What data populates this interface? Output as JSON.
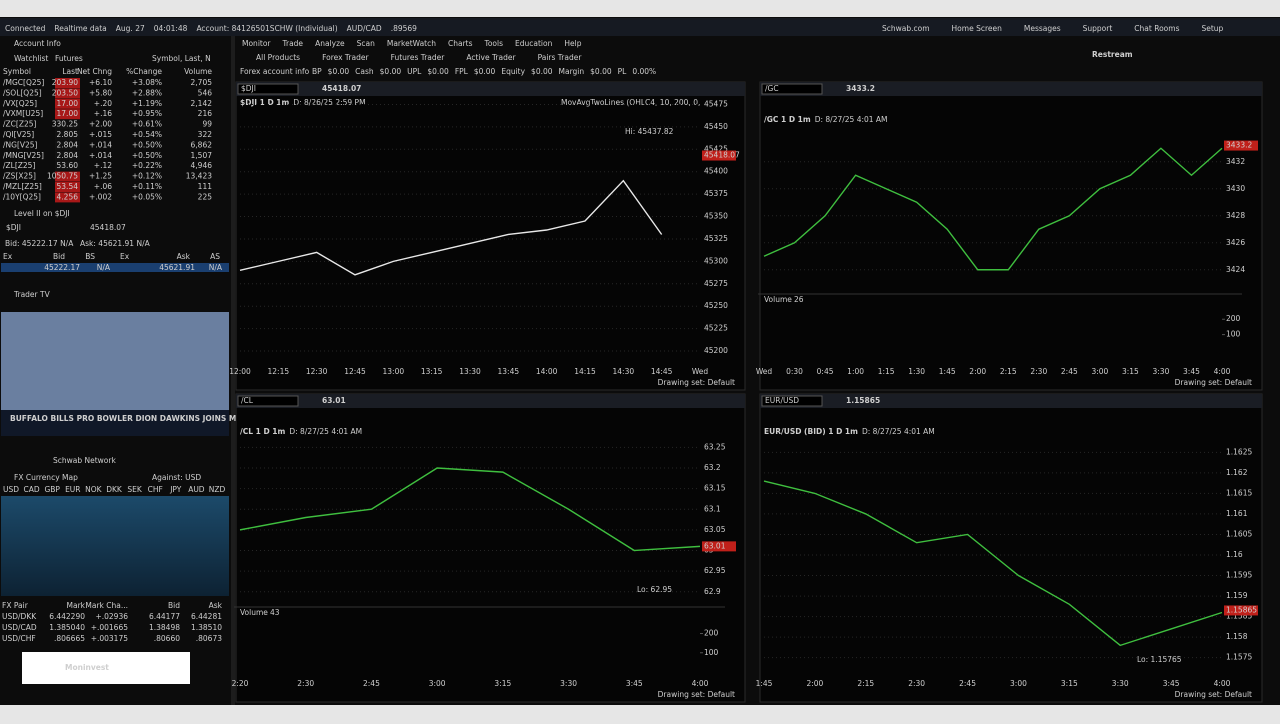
{
  "status": {
    "items": [
      "Connected",
      "Realtime data",
      "Aug. 27",
      "04:01:48",
      "Account: 84126501SCHW (Individual)",
      "AUD/CAD",
      ".89569"
    ],
    "links": [
      "Schwab.com",
      "Home Screen",
      "Messages",
      "Support",
      "Chat Rooms",
      "Setup"
    ]
  },
  "menu": [
    "Monitor",
    "Trade",
    "Analyze",
    "Scan",
    "MarketWatch",
    "Charts",
    "Tools",
    "Education",
    "Help"
  ],
  "subtabs": [
    "All Products",
    "Forex Trader",
    "Futures Trader",
    "Active Trader",
    "Pairs Trader"
  ],
  "account": {
    "title": "Forex account info",
    "fields": [
      "BP",
      "$0.00",
      "Cash",
      "$0.00",
      "UPL",
      "$0.00",
      "FPL",
      "$0.00",
      "Equity",
      "$0.00",
      "Margin",
      "$0.00",
      "PL",
      "0.00%"
    ]
  },
  "sidebar": {
    "account_info": "Account Info",
    "watchlist": {
      "title": "Watchlist",
      "name": "Futures",
      "search": "Symbol, Last, N",
      "columns": [
        "Symbol",
        "Last",
        "Net Chng",
        "%Change",
        "Volume"
      ],
      "rows": [
        [
          "/MGC[Q25]",
          "203.90",
          "+6.10",
          "+3.08%",
          "2,705"
        ],
        [
          "/SOL[Q25]",
          "203.50",
          "+5.80",
          "+2.88%",
          "546"
        ],
        [
          "/VX[Q25]",
          "17.00",
          "+.20",
          "+1.19%",
          "2,142"
        ],
        [
          "/VXM[U25]",
          "17.00",
          "+.16",
          "+0.95%",
          "216"
        ],
        [
          "/ZC[Z25]",
          "330.25",
          "+2.00",
          "+0.61%",
          "99"
        ],
        [
          "/QI[V25]",
          "2.805",
          "+.015",
          "+0.54%",
          "322"
        ],
        [
          "/NG[V25]",
          "2.804",
          "+.014",
          "+0.50%",
          "6,862"
        ],
        [
          "/MNG[V25]",
          "2.804",
          "+.014",
          "+0.50%",
          "1,507"
        ],
        [
          "/ZL[Z25]",
          "53.60",
          "+.12",
          "+0.22%",
          "4,946"
        ],
        [
          "/ZS[X25]",
          "1050.75",
          "+1.25",
          "+0.12%",
          "13,423"
        ],
        [
          "/MZL[Z25]",
          "53.54",
          "+.06",
          "+0.11%",
          "111"
        ],
        [
          "/10Y[Q25]",
          "4.256",
          "+.002",
          "+0.05%",
          "225"
        ]
      ]
    },
    "level2": {
      "title": "Level II on $DJI",
      "symbol": "$DJI",
      "price": "45418.07",
      "bid": "Bid: 45222.17 N/A",
      "ask": "Ask: 45621.91 N/A",
      "columns": [
        "Ex",
        "Bid",
        "BS",
        "Ex",
        "Ask",
        "AS"
      ],
      "row": [
        "45222.17",
        "N/A",
        "45621.91",
        "N/A"
      ]
    },
    "tv": {
      "title": "Trader TV",
      "caption": "BUFFALO BILLS PRO BOWLER DION DAWKINS JOINS MARKET OVERTIME",
      "channel": "Schwab Network"
    },
    "fx": {
      "title": "FX Currency Map",
      "against": "Against: USD",
      "currencies": [
        "USD",
        "CAD",
        "GBP",
        "EUR",
        "NOK",
        "DKK",
        "SEK",
        "CHF",
        "JPY",
        "AUD",
        "NZD"
      ],
      "columns": [
        "FX Pair",
        "Mark",
        "Mark Cha...",
        "Bid",
        "Ask"
      ],
      "rows": [
        [
          "USD/DKK",
          "6.442290",
          "+.02936",
          "6.44177",
          "6.44281"
        ],
        [
          "USD/CAD",
          "1.385040",
          "+.001665",
          "1.38498",
          "1.38510"
        ],
        [
          "USD/CHF",
          ".806665",
          "+.003175",
          ".80660",
          ".80673"
        ]
      ]
    }
  },
  "overlays": {
    "left": "Moninvest",
    "right": "Restream"
  },
  "charts": [
    {
      "type": "line",
      "symbol": "$DJI",
      "title": "$DJI 1 D 1m",
      "info": "D: 8/26/25 2:59 PM",
      "study": "MovAvgTwoLines (OHLC4, 10, 200, 0,",
      "price": 45418.07,
      "color": "#e8e8e8",
      "note": "Hi: 45437.82",
      "categories": [
        "12:00",
        "12:15",
        "12:30",
        "12:45",
        "13:00",
        "13:15",
        "13:30",
        "13:45",
        "14:00",
        "14:15",
        "14:30",
        "14:45",
        "Wed"
      ],
      "values": [
        45290,
        45300,
        45310,
        45285,
        45300,
        45310,
        45320,
        45330,
        45335,
        45345,
        45390,
        45330,
        null
      ],
      "ylim": [
        45190,
        45480
      ],
      "yticks": [
        45200,
        45225,
        45250,
        45275,
        45300,
        45325,
        45350,
        45375,
        45400,
        45425,
        45450,
        45475
      ],
      "drawing_set": "Drawing set: Default"
    },
    {
      "type": "line",
      "symbol": "/GC",
      "title": "/GC 1 D 1m",
      "info": "D: 8/27/25 4:01 AM",
      "price": 3433.2,
      "color": "#3fbf3f",
      "categories": [
        "Wed",
        "0:30",
        "0:45",
        "1:00",
        "1:15",
        "1:30",
        "1:45",
        "2:00",
        "2:15",
        "2:30",
        "2:45",
        "3:00",
        "3:15",
        "3:30",
        "3:45",
        "4:00"
      ],
      "values": [
        3425,
        3426,
        3428,
        3431,
        3430,
        3429,
        3427,
        3424,
        3424,
        3427,
        3428,
        3430,
        3431,
        3433,
        3431,
        3433
      ],
      "ylim": [
        3422.5,
        3434.5
      ],
      "yticks": [
        3424,
        3426,
        3428,
        3430,
        3432
      ],
      "volume": {
        "label": "Volume",
        "value": 26,
        "yticks": [
          100,
          200
        ],
        "ylim": [
          0,
          260
        ]
      },
      "drawing_set": "Drawing set: Default"
    },
    {
      "type": "line",
      "symbol": "/CL",
      "title": "/CL 1 D 1m",
      "info": "D: 8/27/25 4:01 AM",
      "price": 63.01,
      "color": "#3fbf3f",
      "note": "Lo: 62.95",
      "categories": [
        "2:20",
        "2:30",
        "2:45",
        "3:00",
        "3:15",
        "3:30",
        "3:45",
        "4:00"
      ],
      "values": [
        63.05,
        63.08,
        63.1,
        63.2,
        63.19,
        63.1,
        63,
        63.01
      ],
      "ylim": [
        62.88,
        63.28
      ],
      "yticks": [
        62.9,
        62.95,
        63,
        63.05,
        63.1,
        63.15,
        63.2,
        63.25
      ],
      "volume": {
        "label": "Volume",
        "value": 43,
        "yticks": [
          100,
          200
        ],
        "ylim": [
          0,
          260
        ]
      },
      "drawing_set": "Drawing set: Default"
    },
    {
      "type": "line",
      "symbol": "EUR/USD",
      "title": "EUR/USD (BID) 1 D 1m",
      "info": "D: 8/27/25 4:01 AM",
      "price": 1.15865,
      "color": "#3fbf3f",
      "note": "Lo: 1.15765",
      "categories": [
        "1:45",
        "2:00",
        "2:15",
        "2:30",
        "2:45",
        "3:00",
        "3:15",
        "3:30",
        "3:45",
        "4:00"
      ],
      "values": [
        1.1618,
        1.1615,
        1.161,
        1.1603,
        1.1605,
        1.1595,
        1.1588,
        1.1578,
        1.1582,
        1.1586
      ],
      "ylim": [
        1.1572,
        1.1628
      ],
      "yticks": [
        1.1575,
        1.158,
        1.1585,
        1.159,
        1.1595,
        1.16,
        1.1605,
        1.161,
        1.1615,
        1.162,
        1.1625
      ],
      "drawing_set": "Drawing set: Default"
    }
  ]
}
